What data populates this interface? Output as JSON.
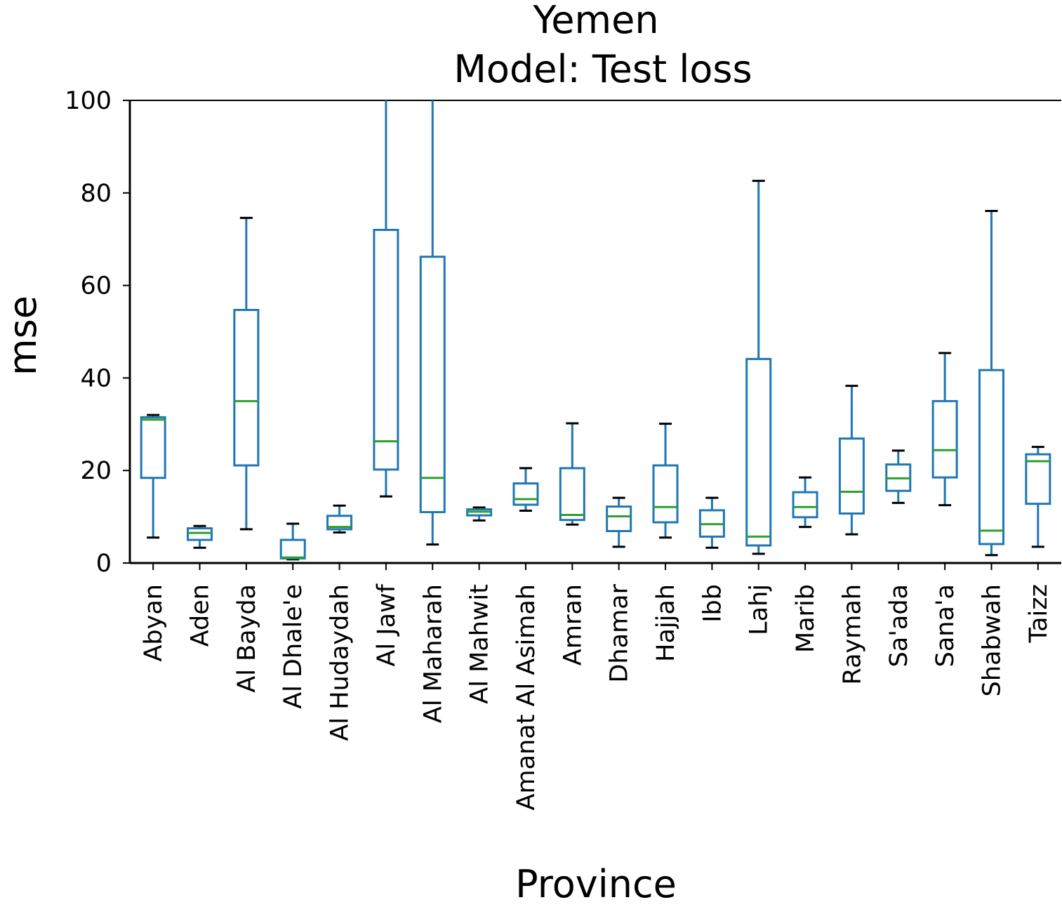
{
  "chart_data": {
    "type": "box",
    "title": "Yemen",
    "subtitle": "Model: Test loss",
    "xlabel": "Province",
    "ylabel": "mse",
    "ylim": [
      0,
      100
    ],
    "yticks": [
      "0",
      "20",
      "40",
      "60",
      "80",
      "100"
    ],
    "grid": false,
    "legend": "none",
    "colors": {
      "box": "#1f77b4",
      "median": "#2ca02c",
      "cap": "#000000",
      "axis": "#000000"
    },
    "categories": [
      "Abyan",
      "Aden",
      "Al Bayda",
      "Al Dhale'e",
      "Al Hudaydah",
      "Al Jawf",
      "Al Maharah",
      "Al Mahwit",
      "Amanat Al Asimah",
      "Amran",
      "Dhamar",
      "Hajjah",
      "Ibb",
      "Lahj",
      "Marib",
      "Raymah",
      "Sa'ada",
      "Sana'a",
      "Shabwah",
      "Taizz"
    ],
    "boxes": [
      {
        "whislo": 5.5,
        "q1": 18.4,
        "med": 31.0,
        "q3": 31.5,
        "whishi": 32.0
      },
      {
        "whislo": 3.3,
        "q1": 5.0,
        "med": 6.5,
        "q3": 7.5,
        "whishi": 8.0
      },
      {
        "whislo": 7.3,
        "q1": 21.1,
        "med": 35.0,
        "q3": 54.7,
        "whishi": 74.6
      },
      {
        "whislo": 0.8,
        "q1": 1.0,
        "med": 1.2,
        "q3": 5.0,
        "whishi": 8.5
      },
      {
        "whislo": 6.6,
        "q1": 7.3,
        "med": 7.8,
        "q3": 10.2,
        "whishi": 12.4
      },
      {
        "whislo": 14.4,
        "q1": 20.2,
        "med": 26.3,
        "q3": 72.0,
        "whishi": 100.0
      },
      {
        "whislo": 4.0,
        "q1": 11.0,
        "med": 18.4,
        "q3": 66.2,
        "whishi": 100.0
      },
      {
        "whislo": 9.2,
        "q1": 10.3,
        "med": 11.1,
        "q3": 11.6,
        "whishi": 12.0
      },
      {
        "whislo": 11.3,
        "q1": 12.6,
        "med": 13.8,
        "q3": 17.2,
        "whishi": 20.5
      },
      {
        "whislo": 8.3,
        "q1": 9.3,
        "med": 10.4,
        "q3": 20.5,
        "whishi": 30.2
      },
      {
        "whislo": 3.5,
        "q1": 6.9,
        "med": 10.1,
        "q3": 12.2,
        "whishi": 14.1
      },
      {
        "whislo": 5.5,
        "q1": 8.8,
        "med": 12.1,
        "q3": 21.1,
        "whishi": 30.1
      },
      {
        "whislo": 3.3,
        "q1": 5.7,
        "med": 8.4,
        "q3": 11.4,
        "whishi": 14.1
      },
      {
        "whislo": 2.0,
        "q1": 3.8,
        "med": 5.7,
        "q3": 44.1,
        "whishi": 82.6
      },
      {
        "whislo": 7.8,
        "q1": 9.9,
        "med": 12.1,
        "q3": 15.3,
        "whishi": 18.5
      },
      {
        "whislo": 6.2,
        "q1": 10.7,
        "med": 15.4,
        "q3": 26.9,
        "whishi": 38.3
      },
      {
        "whislo": 13.0,
        "q1": 15.6,
        "med": 18.3,
        "q3": 21.3,
        "whishi": 24.3
      },
      {
        "whislo": 12.5,
        "q1": 18.5,
        "med": 24.4,
        "q3": 35.0,
        "whishi": 45.4
      },
      {
        "whislo": 1.7,
        "q1": 4.1,
        "med": 7.0,
        "q3": 41.7,
        "whishi": 76.1
      },
      {
        "whislo": 3.5,
        "q1": 12.8,
        "med": 22.0,
        "q3": 23.5,
        "whishi": 25.1
      }
    ]
  }
}
